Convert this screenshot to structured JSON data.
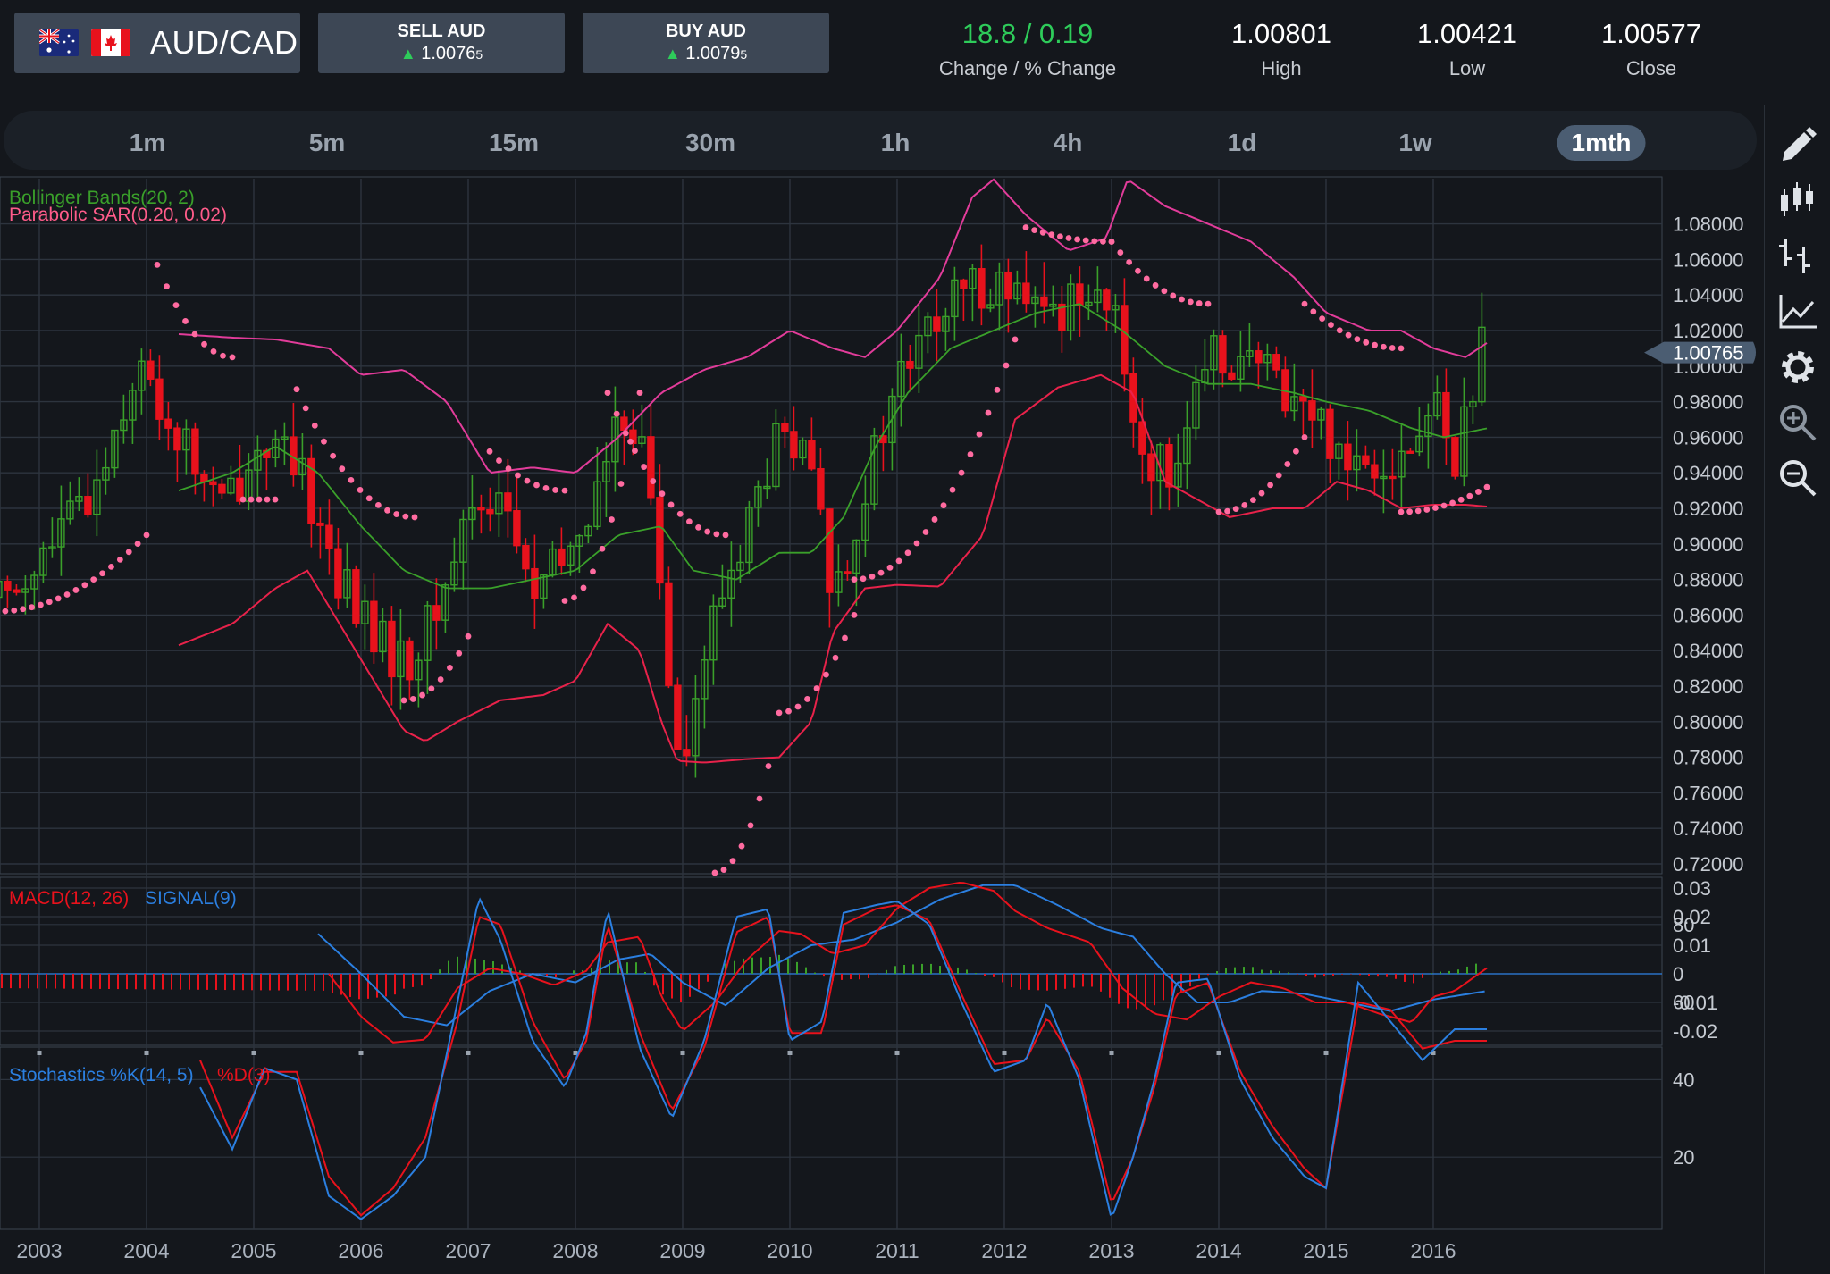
{
  "header": {
    "pair": "AUD/CAD",
    "sell": {
      "label": "SELL AUD",
      "price": "1.0076",
      "pip": "5"
    },
    "buy": {
      "label": "BUY AUD",
      "price": "1.0079",
      "pip": "5"
    },
    "change": {
      "value": "18.8 / 0.19",
      "label": "Change / % Change",
      "color": "#2ecc5a"
    },
    "high": {
      "value": "1.00801",
      "label": "High"
    },
    "low": {
      "value": "1.00421",
      "label": "Low"
    },
    "close": {
      "value": "1.00577",
      "label": "Close"
    }
  },
  "timeframes": [
    "1m",
    "5m",
    "15m",
    "30m",
    "1h",
    "4h",
    "1d",
    "1w",
    "1mth"
  ],
  "active_timeframe": "1mth",
  "toolbar_icons": [
    "pencil-icon",
    "candlestick-icon",
    "ohlc-bars-icon",
    "line-chart-icon",
    "gear-icon",
    "zoom-in-icon",
    "zoom-out-icon"
  ],
  "chart_data": [
    {
      "type": "candlestick",
      "title": "",
      "indicators": [
        "Bollinger Bands(20, 2)",
        "Parabolic SAR(0.20, 0.02)"
      ],
      "xlabels": [
        "2003",
        "2004",
        "2005",
        "2006",
        "2007",
        "2008",
        "2009",
        "2010",
        "2011",
        "2012",
        "2013",
        "2014",
        "2015",
        "2016"
      ],
      "yticks": [
        "1.08000",
        "1.06000",
        "1.04000",
        "1.02000",
        "1.00000",
        "0.98000",
        "0.96000",
        "0.94000",
        "0.92000",
        "0.90000",
        "0.88000",
        "0.86000",
        "0.84000",
        "0.82000",
        "0.80000",
        "0.78000",
        "0.76000",
        "0.74000",
        "0.72000"
      ],
      "ylim": [
        0.71,
        1.105
      ],
      "last_price": "1.00765",
      "colors": {
        "up": "#3aa02a",
        "down": "#e8121c",
        "band": "#e23c9a",
        "bandLower": "#e8224a",
        "mid": "#3aa02a",
        "sar": "#ff6ba0"
      },
      "close_path": {
        "x": [
          2002.6,
          2003.0,
          2003.5,
          2003.9,
          2004.3,
          2004.7,
          2005.1,
          2005.5,
          2005.8,
          2006.1,
          2006.4,
          2006.7,
          2007.0,
          2007.3,
          2007.6,
          2007.9,
          2008.2,
          2008.5,
          2008.7,
          2008.85,
          2009.0,
          2009.3,
          2009.6,
          2009.9,
          2010.2,
          2010.4,
          2010.7,
          2011.0,
          2011.3,
          2011.6,
          2011.9,
          2012.2,
          2012.5,
          2012.8,
          2013.0,
          2013.3,
          2013.5,
          2013.8,
          2014.0,
          2014.3,
          2014.6,
          2014.9,
          2015.2,
          2015.5,
          2015.8,
          2016.0,
          2016.2,
          2016.45
        ],
        "y": [
          0.87,
          0.89,
          0.93,
          1.0,
          0.96,
          0.92,
          0.96,
          0.93,
          0.88,
          0.85,
          0.83,
          0.86,
          0.92,
          0.93,
          0.87,
          0.89,
          0.93,
          0.98,
          0.93,
          0.84,
          0.78,
          0.86,
          0.91,
          0.96,
          0.94,
          0.87,
          0.93,
          0.99,
          1.02,
          1.04,
          1.05,
          1.03,
          1.03,
          1.05,
          1.03,
          0.95,
          0.94,
          0.98,
          1.01,
          1.0,
          0.99,
          0.97,
          0.95,
          0.95,
          0.95,
          0.98,
          0.95,
          1.007
        ]
      },
      "bollinger_upper": {
        "x": [
          2004.3,
          2004.8,
          2005.2,
          2005.7,
          2006.0,
          2006.4,
          2006.8,
          2007.2,
          2007.6,
          2008.0,
          2008.4,
          2008.8,
          2009.2,
          2009.6,
          2010.0,
          2010.4,
          2010.7,
          2011.0,
          2011.4,
          2011.7,
          2011.9,
          2012.2,
          2012.6,
          2012.95,
          2013.15,
          2013.5,
          2013.9,
          2014.3,
          2014.7,
          2015.0,
          2015.4,
          2015.7,
          2016.0,
          2016.3,
          2016.5
        ],
        "y": [
          1.018,
          1.016,
          1.015,
          1.01,
          0.995,
          0.998,
          0.98,
          0.94,
          0.943,
          0.94,
          0.96,
          0.985,
          0.998,
          1.005,
          1.02,
          1.01,
          1.005,
          1.02,
          1.05,
          1.095,
          1.105,
          1.085,
          1.065,
          1.072,
          1.105,
          1.09,
          1.08,
          1.07,
          1.05,
          1.03,
          1.02,
          1.02,
          1.01,
          1.005,
          1.013
        ]
      },
      "bollinger_lower": {
        "x": [
          2004.3,
          2004.8,
          2005.2,
          2005.5,
          2005.8,
          2006.1,
          2006.4,
          2006.6,
          2006.9,
          2007.3,
          2007.7,
          2008.0,
          2008.3,
          2008.6,
          2008.8,
          2008.95,
          2009.2,
          2009.6,
          2009.9,
          2010.2,
          2010.4,
          2010.7,
          2011.0,
          2011.4,
          2011.8,
          2012.1,
          2012.5,
          2012.9,
          2013.2,
          2013.5,
          2013.8,
          2014.1,
          2014.5,
          2014.8,
          2015.1,
          2015.4,
          2015.7,
          2016.0,
          2016.3,
          2016.5
        ],
        "y": [
          0.843,
          0.855,
          0.875,
          0.885,
          0.855,
          0.825,
          0.795,
          0.789,
          0.8,
          0.812,
          0.815,
          0.823,
          0.855,
          0.84,
          0.8,
          0.778,
          0.777,
          0.779,
          0.78,
          0.8,
          0.85,
          0.875,
          0.877,
          0.876,
          0.905,
          0.97,
          0.988,
          0.995,
          0.985,
          0.935,
          0.925,
          0.915,
          0.92,
          0.92,
          0.935,
          0.93,
          0.92,
          0.922,
          0.922,
          0.921
        ]
      },
      "bollinger_mid": {
        "x": [
          2004.3,
          2004.8,
          2005.2,
          2005.6,
          2006.0,
          2006.4,
          2006.8,
          2007.2,
          2007.6,
          2008.0,
          2008.4,
          2008.8,
          2009.1,
          2009.5,
          2009.9,
          2010.2,
          2010.5,
          2010.8,
          2011.1,
          2011.5,
          2011.9,
          2012.3,
          2012.7,
          2013.1,
          2013.5,
          2013.9,
          2014.3,
          2014.7,
          2015.0,
          2015.4,
          2015.8,
          2016.1,
          2016.5
        ],
        "y": [
          0.93,
          0.94,
          0.955,
          0.94,
          0.91,
          0.885,
          0.875,
          0.875,
          0.88,
          0.885,
          0.905,
          0.91,
          0.885,
          0.88,
          0.895,
          0.895,
          0.915,
          0.955,
          0.985,
          1.01,
          1.02,
          1.03,
          1.035,
          1.02,
          1.0,
          0.99,
          0.99,
          0.985,
          0.98,
          0.975,
          0.965,
          0.96,
          0.965
        ]
      },
      "sar": [
        {
          "x0": 2002.6,
          "x1": 2004.0,
          "y0": 0.862,
          "y1": 0.905
        },
        {
          "x0": 2004.1,
          "x1": 2004.8,
          "y0": 1.057,
          "y1": 1.005
        },
        {
          "x0": 2004.9,
          "x1": 2005.2,
          "y0": 0.925,
          "y1": 0.925
        },
        {
          "x0": 2005.4,
          "x1": 2006.5,
          "y0": 0.987,
          "y1": 0.915
        },
        {
          "x0": 2006.4,
          "x1": 2007.0,
          "y0": 0.812,
          "y1": 0.848
        },
        {
          "x0": 2007.2,
          "x1": 2007.9,
          "y0": 0.952,
          "y1": 0.93
        },
        {
          "x0": 2007.9,
          "x1": 2008.6,
          "y0": 0.868,
          "y1": 0.985
        },
        {
          "x0": 2008.3,
          "x1": 2009.4,
          "y0": 0.985,
          "y1": 0.905
        },
        {
          "x0": 2009.3,
          "x1": 2009.8,
          "y0": 0.715,
          "y1": 0.775
        },
        {
          "x0": 2009.9,
          "x1": 2010.6,
          "y0": 0.805,
          "y1": 0.86
        },
        {
          "x0": 2010.6,
          "x1": 2012.1,
          "y0": 0.88,
          "y1": 1.015
        },
        {
          "x0": 2012.2,
          "x1": 2013.0,
          "y0": 1.078,
          "y1": 1.07
        },
        {
          "x0": 2013.0,
          "x1": 2013.9,
          "y0": 1.07,
          "y1": 1.035
        },
        {
          "x0": 2014.0,
          "x1": 2014.8,
          "y0": 0.918,
          "y1": 0.96
        },
        {
          "x0": 2014.8,
          "x1": 2015.7,
          "y0": 1.035,
          "y1": 1.01
        },
        {
          "x0": 2015.7,
          "x1": 2016.5,
          "y0": 0.918,
          "y1": 0.932
        }
      ]
    },
    {
      "type": "line",
      "title": "",
      "series_labels": [
        "MACD(12, 26)",
        "SIGNAL(9)"
      ],
      "yticks": [
        "0.03",
        "0.02",
        "0.01",
        "0",
        "-0.01",
        "-0.02"
      ],
      "ylim": [
        -0.027,
        0.035
      ],
      "colors": {
        "macd": "#e8121c",
        "signal": "#2b7fe0",
        "histPos": "#3aa02a",
        "histNeg": "#e8121c"
      },
      "series": [
        {
          "name": "MACD(12, 26)",
          "x": [
            2005.7,
            2006.0,
            2006.3,
            2006.6,
            2006.9,
            2007.2,
            2007.5,
            2007.8,
            2008.1,
            2008.3,
            2008.6,
            2008.8,
            2009.0,
            2009.3,
            2009.6,
            2009.9,
            2010.1,
            2010.4,
            2010.7,
            2011.0,
            2011.3,
            2011.6,
            2011.9,
            2012.1,
            2012.4,
            2012.8,
            2013.1,
            2013.4,
            2013.7,
            2014.0,
            2014.3,
            2014.6,
            2014.9,
            2015.2,
            2015.5,
            2015.8,
            2016.0,
            2016.2,
            2016.5
          ],
          "y": [
            0.0,
            -0.015,
            -0.024,
            -0.023,
            -0.005,
            0.002,
            0.0,
            -0.004,
            0.001,
            0.011,
            0.013,
            -0.008,
            -0.02,
            -0.01,
            0.005,
            0.015,
            0.014,
            0.007,
            0.01,
            0.023,
            0.03,
            0.032,
            0.029,
            0.022,
            0.016,
            0.011,
            -0.005,
            -0.014,
            -0.016,
            -0.008,
            -0.003,
            -0.005,
            -0.01,
            -0.01,
            -0.014,
            -0.017,
            -0.008,
            -0.006,
            0.002
          ]
        },
        {
          "name": "SIGNAL(9)",
          "x": [
            2005.6,
            2006.0,
            2006.4,
            2006.8,
            2007.2,
            2007.6,
            2008.0,
            2008.4,
            2008.7,
            2009.0,
            2009.4,
            2009.8,
            2010.2,
            2010.6,
            2011.0,
            2011.4,
            2011.8,
            2012.1,
            2012.5,
            2012.9,
            2013.2,
            2013.5,
            2013.8,
            2014.1,
            2014.4,
            2014.8,
            2015.2,
            2015.6,
            2016.0,
            2016.5
          ],
          "y": [
            0.014,
            0.0,
            -0.015,
            -0.018,
            -0.006,
            0.0,
            -0.003,
            0.005,
            0.007,
            -0.003,
            -0.011,
            0.002,
            0.01,
            0.012,
            0.018,
            0.026,
            0.031,
            0.031,
            0.024,
            0.016,
            0.013,
            0.0,
            -0.01,
            -0.01,
            -0.006,
            -0.007,
            -0.01,
            -0.013,
            -0.009,
            -0.006
          ]
        }
      ]
    },
    {
      "type": "line",
      "title": "",
      "series_labels": [
        "Stochastics %K(14, 5)",
        "%D(3)"
      ],
      "yticks": [
        "80",
        "60",
        "40",
        "20"
      ],
      "ylim": [
        3,
        95
      ],
      "colors": {
        "k": "#2b7fe0",
        "d": "#e8121c"
      },
      "series": [
        {
          "name": "%K(14, 5)",
          "x": [
            2004.5,
            2004.8,
            2005.1,
            2005.4,
            2005.7,
            2006.0,
            2006.3,
            2006.6,
            2006.9,
            2007.1,
            2007.3,
            2007.6,
            2007.9,
            2008.1,
            2008.3,
            2008.6,
            2008.9,
            2009.2,
            2009.5,
            2009.8,
            2010.0,
            2010.3,
            2010.5,
            2010.8,
            2011.0,
            2011.3,
            2011.6,
            2011.9,
            2012.2,
            2012.4,
            2012.7,
            2013.0,
            2013.2,
            2013.4,
            2013.6,
            2013.9,
            2014.2,
            2014.5,
            2014.8,
            2015.0,
            2015.3,
            2015.6,
            2015.9,
            2016.2,
            2016.5
          ],
          "y": [
            38,
            22,
            43,
            40,
            10,
            4,
            10,
            20,
            60,
            87,
            76,
            50,
            38,
            52,
            84,
            48,
            30,
            50,
            82,
            84,
            50,
            55,
            83,
            85,
            86,
            80,
            60,
            42,
            45,
            60,
            40,
            4,
            20,
            40,
            65,
            66,
            40,
            25,
            15,
            12,
            65,
            55,
            45,
            53,
            53
          ]
        },
        {
          "name": "%D(3)",
          "x": [
            2004.5,
            2004.8,
            2005.1,
            2005.4,
            2005.7,
            2006.0,
            2006.3,
            2006.6,
            2006.9,
            2007.1,
            2007.3,
            2007.6,
            2007.9,
            2008.1,
            2008.3,
            2008.6,
            2008.9,
            2009.2,
            2009.5,
            2009.8,
            2010.0,
            2010.3,
            2010.5,
            2010.8,
            2011.0,
            2011.3,
            2011.6,
            2011.9,
            2012.2,
            2012.4,
            2012.7,
            2013.0,
            2013.2,
            2013.4,
            2013.6,
            2013.9,
            2014.2,
            2014.5,
            2014.8,
            2015.0,
            2015.3,
            2015.6,
            2015.9,
            2016.2,
            2016.5
          ],
          "y": [
            45,
            25,
            42,
            42,
            15,
            5,
            12,
            25,
            55,
            82,
            80,
            55,
            40,
            50,
            80,
            52,
            32,
            48,
            78,
            82,
            52,
            52,
            80,
            84,
            85,
            81,
            62,
            44,
            45,
            56,
            42,
            8,
            20,
            38,
            62,
            65,
            42,
            28,
            17,
            12,
            60,
            58,
            48,
            50,
            50
          ]
        }
      ]
    }
  ]
}
